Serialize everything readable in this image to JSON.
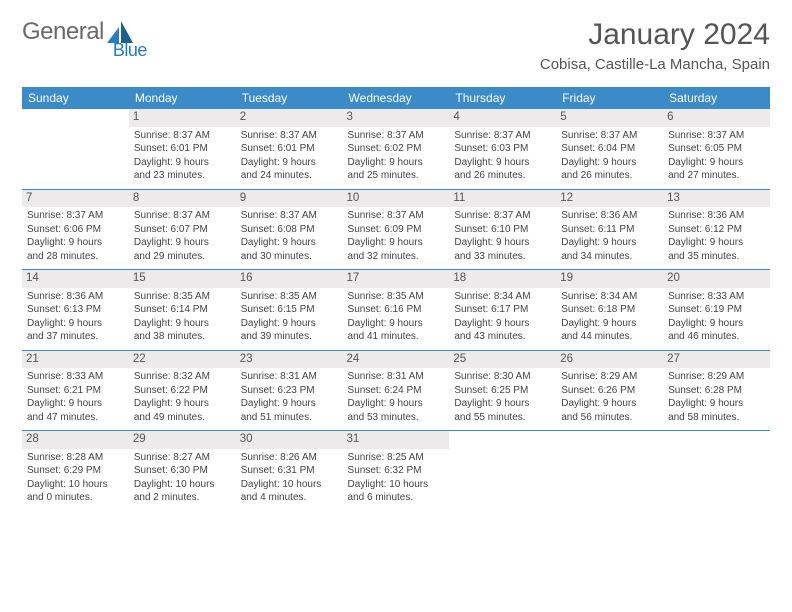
{
  "logo": {
    "gen": "General",
    "blue": "Blue"
  },
  "title": "January 2024",
  "location": "Cobisa, Castille-La Mancha, Spain",
  "colors": {
    "header_bg": "#3b8bc9",
    "header_fg": "#ffffff",
    "daynum_bg": "#eceaea",
    "text": "#444444",
    "rule": "#3b8bc9",
    "logo_gray": "#6a6a6a",
    "logo_blue": "#2a7bbf",
    "page_bg": "#ffffff"
  },
  "typography": {
    "title_size_pt": 22,
    "location_size_pt": 11,
    "weekday_size_pt": 9,
    "daynum_size_pt": 8.5,
    "cell_size_pt": 7.5,
    "font_family": "Arial"
  },
  "layout": {
    "columns": 7,
    "rows": 6,
    "table_width_pct": 100,
    "cell_border_top": true
  },
  "weekdays": [
    "Sunday",
    "Monday",
    "Tuesday",
    "Wednesday",
    "Thursday",
    "Friday",
    "Saturday"
  ],
  "weeks": [
    [
      {
        "day": "",
        "lines": []
      },
      {
        "day": "1",
        "lines": [
          "Sunrise: 8:37 AM",
          "Sunset: 6:01 PM",
          "Daylight: 9 hours",
          "and 23 minutes."
        ]
      },
      {
        "day": "2",
        "lines": [
          "Sunrise: 8:37 AM",
          "Sunset: 6:01 PM",
          "Daylight: 9 hours",
          "and 24 minutes."
        ]
      },
      {
        "day": "3",
        "lines": [
          "Sunrise: 8:37 AM",
          "Sunset: 6:02 PM",
          "Daylight: 9 hours",
          "and 25 minutes."
        ]
      },
      {
        "day": "4",
        "lines": [
          "Sunrise: 8:37 AM",
          "Sunset: 6:03 PM",
          "Daylight: 9 hours",
          "and 26 minutes."
        ]
      },
      {
        "day": "5",
        "lines": [
          "Sunrise: 8:37 AM",
          "Sunset: 6:04 PM",
          "Daylight: 9 hours",
          "and 26 minutes."
        ]
      },
      {
        "day": "6",
        "lines": [
          "Sunrise: 8:37 AM",
          "Sunset: 6:05 PM",
          "Daylight: 9 hours",
          "and 27 minutes."
        ]
      }
    ],
    [
      {
        "day": "7",
        "lines": [
          "Sunrise: 8:37 AM",
          "Sunset: 6:06 PM",
          "Daylight: 9 hours",
          "and 28 minutes."
        ]
      },
      {
        "day": "8",
        "lines": [
          "Sunrise: 8:37 AM",
          "Sunset: 6:07 PM",
          "Daylight: 9 hours",
          "and 29 minutes."
        ]
      },
      {
        "day": "9",
        "lines": [
          "Sunrise: 8:37 AM",
          "Sunset: 6:08 PM",
          "Daylight: 9 hours",
          "and 30 minutes."
        ]
      },
      {
        "day": "10",
        "lines": [
          "Sunrise: 8:37 AM",
          "Sunset: 6:09 PM",
          "Daylight: 9 hours",
          "and 32 minutes."
        ]
      },
      {
        "day": "11",
        "lines": [
          "Sunrise: 8:37 AM",
          "Sunset: 6:10 PM",
          "Daylight: 9 hours",
          "and 33 minutes."
        ]
      },
      {
        "day": "12",
        "lines": [
          "Sunrise: 8:36 AM",
          "Sunset: 6:11 PM",
          "Daylight: 9 hours",
          "and 34 minutes."
        ]
      },
      {
        "day": "13",
        "lines": [
          "Sunrise: 8:36 AM",
          "Sunset: 6:12 PM",
          "Daylight: 9 hours",
          "and 35 minutes."
        ]
      }
    ],
    [
      {
        "day": "14",
        "lines": [
          "Sunrise: 8:36 AM",
          "Sunset: 6:13 PM",
          "Daylight: 9 hours",
          "and 37 minutes."
        ]
      },
      {
        "day": "15",
        "lines": [
          "Sunrise: 8:35 AM",
          "Sunset: 6:14 PM",
          "Daylight: 9 hours",
          "and 38 minutes."
        ]
      },
      {
        "day": "16",
        "lines": [
          "Sunrise: 8:35 AM",
          "Sunset: 6:15 PM",
          "Daylight: 9 hours",
          "and 39 minutes."
        ]
      },
      {
        "day": "17",
        "lines": [
          "Sunrise: 8:35 AM",
          "Sunset: 6:16 PM",
          "Daylight: 9 hours",
          "and 41 minutes."
        ]
      },
      {
        "day": "18",
        "lines": [
          "Sunrise: 8:34 AM",
          "Sunset: 6:17 PM",
          "Daylight: 9 hours",
          "and 43 minutes."
        ]
      },
      {
        "day": "19",
        "lines": [
          "Sunrise: 8:34 AM",
          "Sunset: 6:18 PM",
          "Daylight: 9 hours",
          "and 44 minutes."
        ]
      },
      {
        "day": "20",
        "lines": [
          "Sunrise: 8:33 AM",
          "Sunset: 6:19 PM",
          "Daylight: 9 hours",
          "and 46 minutes."
        ]
      }
    ],
    [
      {
        "day": "21",
        "lines": [
          "Sunrise: 8:33 AM",
          "Sunset: 6:21 PM",
          "Daylight: 9 hours",
          "and 47 minutes."
        ]
      },
      {
        "day": "22",
        "lines": [
          "Sunrise: 8:32 AM",
          "Sunset: 6:22 PM",
          "Daylight: 9 hours",
          "and 49 minutes."
        ]
      },
      {
        "day": "23",
        "lines": [
          "Sunrise: 8:31 AM",
          "Sunset: 6:23 PM",
          "Daylight: 9 hours",
          "and 51 minutes."
        ]
      },
      {
        "day": "24",
        "lines": [
          "Sunrise: 8:31 AM",
          "Sunset: 6:24 PM",
          "Daylight: 9 hours",
          "and 53 minutes."
        ]
      },
      {
        "day": "25",
        "lines": [
          "Sunrise: 8:30 AM",
          "Sunset: 6:25 PM",
          "Daylight: 9 hours",
          "and 55 minutes."
        ]
      },
      {
        "day": "26",
        "lines": [
          "Sunrise: 8:29 AM",
          "Sunset: 6:26 PM",
          "Daylight: 9 hours",
          "and 56 minutes."
        ]
      },
      {
        "day": "27",
        "lines": [
          "Sunrise: 8:29 AM",
          "Sunset: 6:28 PM",
          "Daylight: 9 hours",
          "and 58 minutes."
        ]
      }
    ],
    [
      {
        "day": "28",
        "lines": [
          "Sunrise: 8:28 AM",
          "Sunset: 6:29 PM",
          "Daylight: 10 hours",
          "and 0 minutes."
        ]
      },
      {
        "day": "29",
        "lines": [
          "Sunrise: 8:27 AM",
          "Sunset: 6:30 PM",
          "Daylight: 10 hours",
          "and 2 minutes."
        ]
      },
      {
        "day": "30",
        "lines": [
          "Sunrise: 8:26 AM",
          "Sunset: 6:31 PM",
          "Daylight: 10 hours",
          "and 4 minutes."
        ]
      },
      {
        "day": "31",
        "lines": [
          "Sunrise: 8:25 AM",
          "Sunset: 6:32 PM",
          "Daylight: 10 hours",
          "and 6 minutes."
        ]
      },
      {
        "day": "",
        "lines": []
      },
      {
        "day": "",
        "lines": []
      },
      {
        "day": "",
        "lines": []
      }
    ]
  ]
}
